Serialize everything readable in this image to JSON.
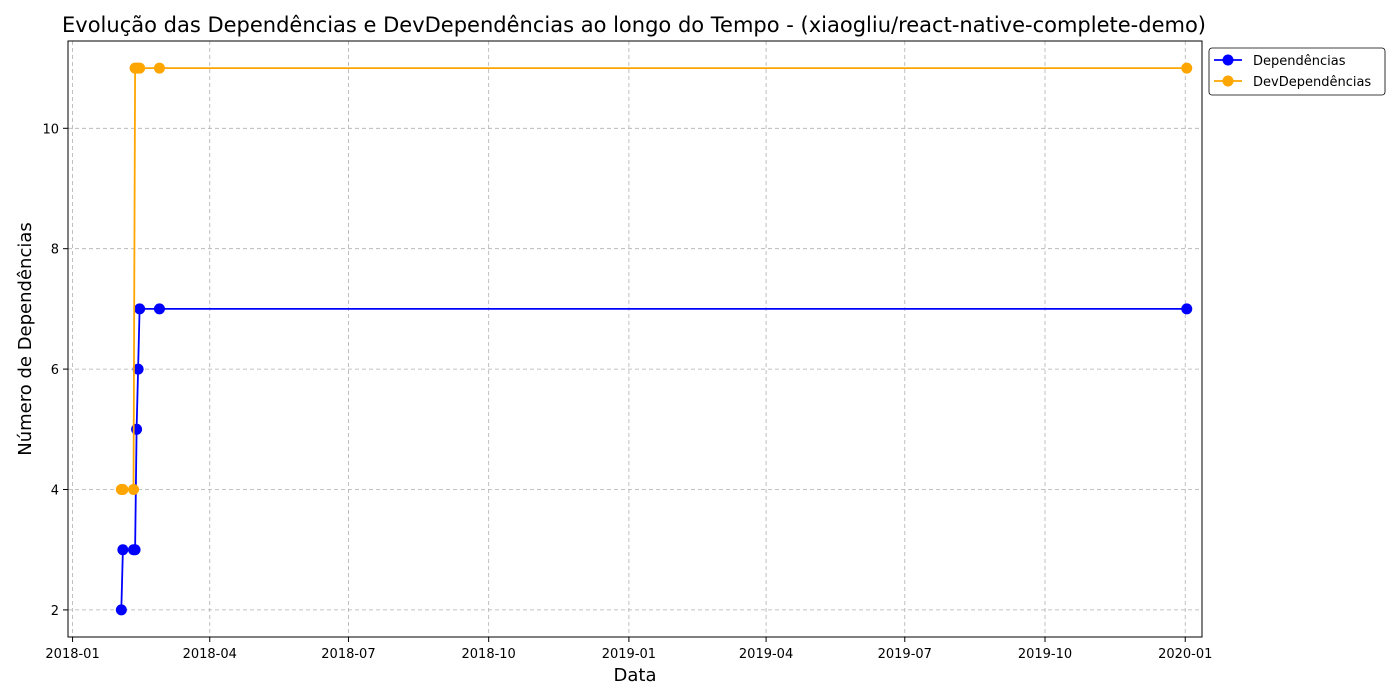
{
  "chart_data": {
    "type": "line",
    "title": "Evolução das Dependências e DevDependências ao longo do Tempo - (xiaogliu/react-native-complete-demo)",
    "xlabel": "Data",
    "ylabel": "Número de Dependências",
    "x_ticks": [
      "2018-01",
      "2018-04",
      "2018-07",
      "2018-10",
      "2019-01",
      "2019-04",
      "2019-07",
      "2019-10",
      "2020-01"
    ],
    "y_ticks": [
      "2",
      "4",
      "6",
      "8",
      "10"
    ],
    "xlim": [
      "2017-12-29",
      "2020-01-12"
    ],
    "ylim": [
      1.55,
      11.45
    ],
    "grid": true,
    "legend_position": "outside-top-right",
    "series": [
      {
        "name": "Dependências",
        "color": "#0000ff",
        "points": [
          {
            "x": "2018-02-02",
            "y": 2
          },
          {
            "x": "2018-02-03",
            "y": 3
          },
          {
            "x": "2018-02-10",
            "y": 3
          },
          {
            "x": "2018-02-11",
            "y": 3
          },
          {
            "x": "2018-02-12",
            "y": 5
          },
          {
            "x": "2018-02-13",
            "y": 6
          },
          {
            "x": "2018-02-14",
            "y": 7
          },
          {
            "x": "2018-02-27",
            "y": 7
          },
          {
            "x": "2020-01-02",
            "y": 7
          }
        ]
      },
      {
        "name": "DevDependências",
        "color": "#ffa500",
        "points": [
          {
            "x": "2018-02-02",
            "y": 4
          },
          {
            "x": "2018-02-03",
            "y": 4
          },
          {
            "x": "2018-02-10",
            "y": 4
          },
          {
            "x": "2018-02-11",
            "y": 11
          },
          {
            "x": "2018-02-12",
            "y": 11
          },
          {
            "x": "2018-02-13",
            "y": 11
          },
          {
            "x": "2018-02-14",
            "y": 11
          },
          {
            "x": "2018-02-27",
            "y": 11
          },
          {
            "x": "2020-01-02",
            "y": 11
          }
        ]
      }
    ]
  }
}
